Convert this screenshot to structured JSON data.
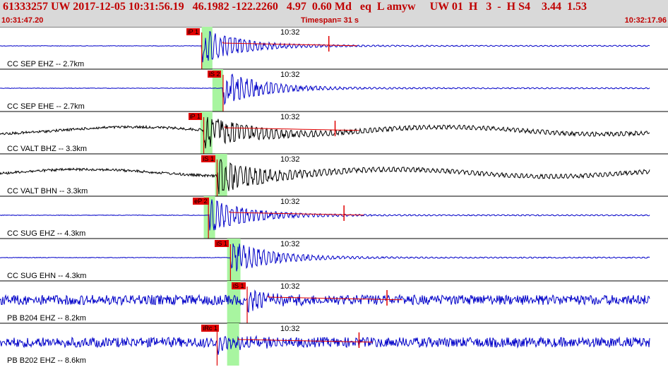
{
  "header": {
    "event_summary": "61333257 UW 2017-12-05 10:31:56.19   46.1982 -122.2260   4.97  0.60 Md   eq  L amyw     UW 01  H   3  -  H S4    3.44  1.53",
    "start_time": "10:31:47.20",
    "timespan": "Timespan=  31 s",
    "end_time": "10:32:17.96"
  },
  "colors": {
    "header_bg": "#d9d9d9",
    "accent_red": "#c00000",
    "pick_red": "#e00000",
    "trace_blue": "#0000c8",
    "trace_black": "#000000",
    "pick_window_green": "#a8f5a0"
  },
  "time_axis": {
    "start_s": 0,
    "end_s": 30.76
  },
  "traces": [
    {
      "label": "CC SEP EHZ -- 2.7km",
      "time_mark": "10:32",
      "color": "blue",
      "amp": 2,
      "picks": [
        {
          "tag": "iP 1",
          "pos": 0.302
        }
      ],
      "green": [
        0.302,
        0.318
      ],
      "coda": true
    },
    {
      "label": "CC SEP EHE -- 2.7km",
      "time_mark": "10:32",
      "color": "blue",
      "amp": 1,
      "picks": [
        {
          "tag": "iS 2",
          "pos": 0.334
        }
      ],
      "green": [
        0.318,
        0.334
      ],
      "coda": false
    },
    {
      "label": "CC VALT BHZ -- 3.3km",
      "time_mark": "10:32",
      "color": "black",
      "amp": 3,
      "picks": [
        {
          "tag": "iP 1",
          "pos": 0.305
        }
      ],
      "green": [
        0.3,
        0.318
      ],
      "coda": true
    },
    {
      "label": "CC VALT BHN -- 3.3km",
      "time_mark": "10:32",
      "color": "black",
      "amp": 3,
      "picks": [
        {
          "tag": "iS 1",
          "pos": 0.325
        }
      ],
      "green": [
        0.322,
        0.34
      ],
      "coda": false
    },
    {
      "label": "CC SUG EHZ -- 4.3km",
      "time_mark": "10:32",
      "color": "blue",
      "amp": 1,
      "picks": [
        {
          "tag": "eP 2",
          "pos": 0.312
        }
      ],
      "green": [
        0.305,
        0.322
      ],
      "coda": true
    },
    {
      "label": "CC SUG EHN -- 4.3km",
      "time_mark": "10:32",
      "color": "blue",
      "amp": 1,
      "picks": [
        {
          "tag": "iS 1",
          "pos": 0.345
        }
      ],
      "green": [
        0.34,
        0.36
      ],
      "coda": false
    },
    {
      "label": "PB B204 EHZ -- 8.2km",
      "time_mark": "10:32",
      "color": "blue",
      "amp": 4,
      "picks": [
        {
          "tag": "iS 1",
          "pos": 0.37
        }
      ],
      "green": [
        0.34,
        0.36
      ],
      "coda": true
    },
    {
      "label": "PB B202 EHZ -- 8.6km",
      "time_mark": "10:32",
      "color": "blue",
      "amp": 4,
      "picks": [
        {
          "tag": "iRc 1",
          "pos": 0.325
        }
      ],
      "green": [
        0.34,
        0.358
      ],
      "coda": true
    }
  ]
}
